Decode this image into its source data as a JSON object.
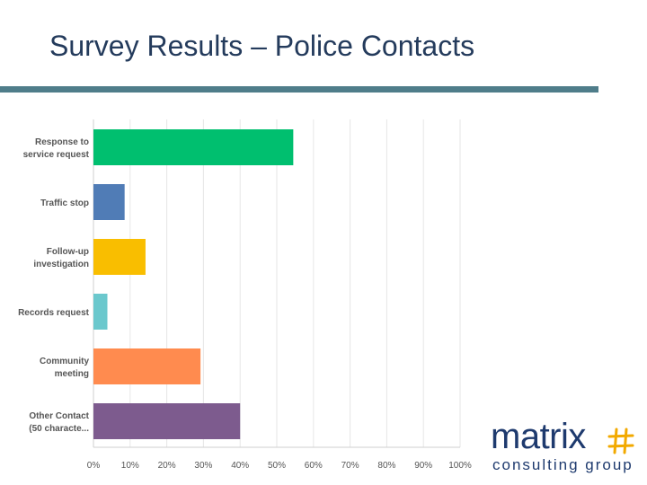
{
  "slide": {
    "title": "Survey Results – Police Contacts"
  },
  "logo": {
    "word": "matrix",
    "sub": "consulting group",
    "accent": "#f2a900",
    "color": "#1e3a6e"
  },
  "chart_data": {
    "type": "bar",
    "orientation": "horizontal",
    "categories": [
      [
        "Response to",
        "service request"
      ],
      [
        "Traffic stop"
      ],
      [
        "Follow-up",
        "investigation"
      ],
      [
        "Records request"
      ],
      [
        "Community",
        "meeting"
      ],
      [
        "Other Contact",
        "(50 characte..."
      ]
    ],
    "values": [
      54.5,
      8.5,
      14.2,
      3.8,
      29.2,
      40.0
    ],
    "colors": [
      "#00bf6f",
      "#507cb6",
      "#f9be00",
      "#6bc8cd",
      "#ff8b4f",
      "#7d5b8e"
    ],
    "xlim": [
      0,
      100
    ],
    "xticks": [
      "0%",
      "10%",
      "20%",
      "30%",
      "40%",
      "50%",
      "60%",
      "70%",
      "80%",
      "90%",
      "100%"
    ],
    "grid": true
  }
}
